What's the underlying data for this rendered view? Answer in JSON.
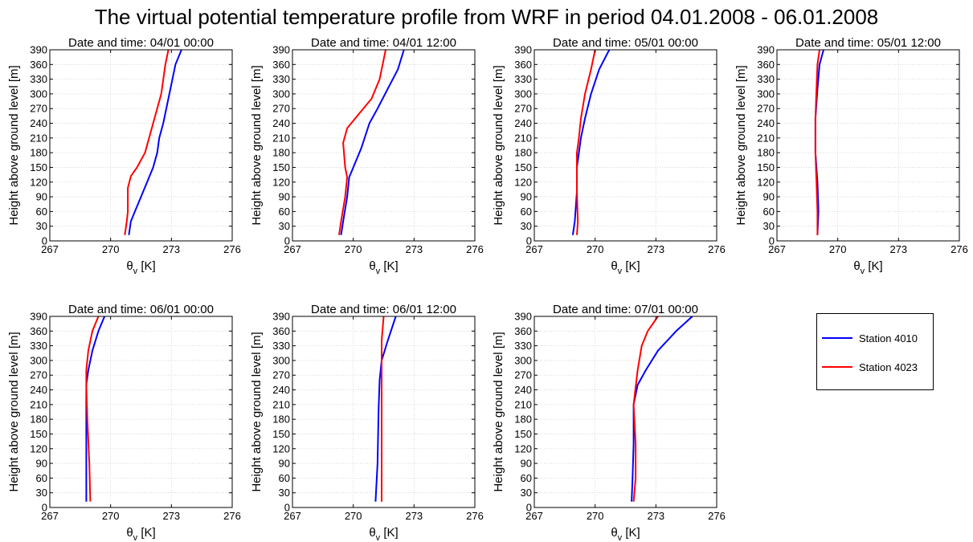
{
  "figure": {
    "title": "The virtual potential temperature profile from WRF in period 04.01.2008 - 06.01.2008"
  },
  "legend": [
    {
      "name": "Station 4010",
      "color": "#0000ff"
    },
    {
      "name": "Station 4023",
      "color": "#ff0000"
    }
  ],
  "chart_data": [
    {
      "type": "line",
      "title": "Date and time: 04/01 00:00",
      "xlabel": "θv [K]",
      "ylabel": "Height above ground level [m]",
      "xlim": [
        267,
        276
      ],
      "ylim": [
        0,
        390
      ],
      "xticks": [
        267,
        270,
        273,
        276
      ],
      "yticks": [
        0,
        30,
        60,
        90,
        120,
        150,
        180,
        210,
        240,
        270,
        300,
        330,
        360,
        390
      ],
      "grid": true,
      "series": [
        {
          "name": "Station 4010",
          "color": "#0000ff",
          "x": [
            270.9,
            271.0,
            271.2,
            271.5,
            271.8,
            272.1,
            272.3,
            272.4,
            272.6,
            272.9,
            273.2,
            273.5
          ],
          "y": [
            12,
            40,
            60,
            90,
            120,
            150,
            180,
            210,
            240,
            300,
            360,
            390
          ]
        },
        {
          "name": "Station 4023",
          "color": "#ff0000",
          "x": [
            270.7,
            270.8,
            270.85,
            270.85,
            271.0,
            271.3,
            271.7,
            272.1,
            272.5,
            272.7,
            272.85
          ],
          "y": [
            12,
            40,
            60,
            108,
            132,
            150,
            180,
            240,
            300,
            360,
            390
          ]
        }
      ]
    },
    {
      "type": "line",
      "title": "Date and time: 04/01 12:00",
      "xlabel": "θv [K]",
      "ylabel": "Height above ground level [m]",
      "xlim": [
        267,
        276
      ],
      "ylim": [
        0,
        390
      ],
      "xticks": [
        267,
        270,
        273,
        276
      ],
      "yticks": [
        0,
        30,
        60,
        90,
        120,
        150,
        180,
        210,
        240,
        270,
        300,
        330,
        360,
        390
      ],
      "grid": true,
      "series": [
        {
          "name": "Station 4010",
          "color": "#0000ff",
          "x": [
            269.4,
            269.5,
            269.7,
            269.8,
            270.0,
            270.4,
            270.8,
            271.2,
            271.7,
            272.2,
            272.5
          ],
          "y": [
            12,
            40,
            90,
            130,
            150,
            190,
            240,
            270,
            310,
            350,
            390
          ]
        },
        {
          "name": "Station 4023",
          "color": "#ff0000",
          "x": [
            269.3,
            269.4,
            269.6,
            269.7,
            269.6,
            269.5,
            269.7,
            270.3,
            270.9,
            271.3,
            271.6
          ],
          "y": [
            12,
            40,
            90,
            130,
            150,
            200,
            230,
            260,
            290,
            330,
            390
          ]
        }
      ]
    },
    {
      "type": "line",
      "title": "Date and time: 05/01 00:00",
      "xlabel": "θv [K]",
      "ylabel": "Height above ground level [m]",
      "xlim": [
        267,
        276
      ],
      "ylim": [
        0,
        390
      ],
      "xticks": [
        267,
        270,
        273,
        276
      ],
      "yticks": [
        0,
        30,
        60,
        90,
        120,
        150,
        180,
        210,
        240,
        270,
        300,
        330,
        360,
        390
      ],
      "grid": true,
      "series": [
        {
          "name": "Station 4010",
          "color": "#0000ff",
          "x": [
            268.9,
            269.0,
            269.1,
            269.1,
            269.2,
            269.3,
            269.5,
            269.8,
            270.2,
            270.7
          ],
          "y": [
            12,
            40,
            100,
            150,
            180,
            210,
            250,
            300,
            350,
            390
          ]
        },
        {
          "name": "Station 4023",
          "color": "#ff0000",
          "x": [
            269.1,
            269.15,
            269.1,
            269.1,
            269.1,
            269.2,
            269.3,
            269.5,
            269.8,
            270.0
          ],
          "y": [
            12,
            40,
            100,
            150,
            180,
            210,
            250,
            300,
            350,
            390
          ]
        }
      ]
    },
    {
      "type": "line",
      "title": "Date and time: 05/01 12:00",
      "xlabel": "θv [K]",
      "ylabel": "Height above ground level [m]",
      "xlim": [
        267,
        276
      ],
      "ylim": [
        0,
        390
      ],
      "xticks": [
        267,
        270,
        273,
        276
      ],
      "yticks": [
        0,
        30,
        60,
        90,
        120,
        150,
        180,
        210,
        240,
        270,
        300,
        330,
        360,
        390
      ],
      "grid": true,
      "series": [
        {
          "name": "Station 4010",
          "color": "#0000ff",
          "x": [
            269.0,
            269.05,
            269.0,
            268.9,
            268.9,
            269.0,
            269.1,
            269.3
          ],
          "y": [
            12,
            60,
            120,
            180,
            250,
            310,
            360,
            390
          ]
        },
        {
          "name": "Station 4023",
          "color": "#ff0000",
          "x": [
            269.0,
            269.0,
            268.95,
            268.9,
            268.9,
            268.95,
            269.0,
            269.1
          ],
          "y": [
            12,
            60,
            120,
            180,
            250,
            310,
            360,
            390
          ]
        }
      ]
    },
    {
      "type": "line",
      "title": "Date and time: 06/01 00:00",
      "xlabel": "θv [K]",
      "ylabel": "Height above ground level [m]",
      "xlim": [
        267,
        276
      ],
      "ylim": [
        0,
        390
      ],
      "xticks": [
        267,
        270,
        273,
        276
      ],
      "yticks": [
        0,
        30,
        60,
        90,
        120,
        150,
        180,
        210,
        240,
        270,
        300,
        330,
        360,
        390
      ],
      "grid": true,
      "series": [
        {
          "name": "Station 4010",
          "color": "#0000ff",
          "x": [
            268.8,
            268.8,
            268.8,
            268.8,
            268.9,
            269.1,
            269.4,
            269.7
          ],
          "y": [
            12,
            90,
            180,
            250,
            280,
            320,
            360,
            390
          ]
        },
        {
          "name": "Station 4023",
          "color": "#ff0000",
          "x": [
            269.0,
            268.95,
            268.85,
            268.8,
            268.8,
            268.9,
            269.1,
            269.4
          ],
          "y": [
            12,
            90,
            180,
            250,
            280,
            320,
            360,
            390
          ]
        }
      ]
    },
    {
      "type": "line",
      "title": "Date and time: 06/01 12:00",
      "xlabel": "θv [K]",
      "ylabel": "Height above ground level [m]",
      "xlim": [
        267,
        276
      ],
      "ylim": [
        0,
        390
      ],
      "xticks": [
        267,
        270,
        273,
        276
      ],
      "yticks": [
        0,
        30,
        60,
        90,
        120,
        150,
        180,
        210,
        240,
        270,
        300,
        330,
        360,
        390
      ],
      "grid": true,
      "series": [
        {
          "name": "Station 4010",
          "color": "#0000ff",
          "x": [
            271.1,
            271.2,
            271.25,
            271.3,
            271.4,
            271.7,
            272.1
          ],
          "y": [
            12,
            90,
            200,
            260,
            300,
            340,
            390
          ]
        },
        {
          "name": "Station 4023",
          "color": "#ff0000",
          "x": [
            271.4,
            271.4,
            271.4,
            271.4,
            271.4,
            271.4,
            271.5
          ],
          "y": [
            12,
            90,
            200,
            260,
            300,
            340,
            390
          ]
        }
      ]
    },
    {
      "type": "line",
      "title": "Date and time: 07/01 00:00",
      "xlabel": "θv [K]",
      "ylabel": "Height above ground level [m]",
      "xlim": [
        267,
        276
      ],
      "ylim": [
        0,
        390
      ],
      "xticks": [
        267,
        270,
        273,
        276
      ],
      "yticks": [
        0,
        30,
        60,
        90,
        120,
        150,
        180,
        210,
        240,
        270,
        300,
        330,
        360,
        390
      ],
      "grid": true,
      "series": [
        {
          "name": "Station 4010",
          "color": "#0000ff",
          "x": [
            271.8,
            271.85,
            271.9,
            271.9,
            272.1,
            272.5,
            273.1,
            274.0,
            274.8
          ],
          "y": [
            12,
            60,
            130,
            210,
            250,
            280,
            320,
            360,
            390
          ]
        },
        {
          "name": "Station 4023",
          "color": "#ff0000",
          "x": [
            271.9,
            272.0,
            272.0,
            271.9,
            272.1,
            272.3,
            272.6,
            273.1
          ],
          "y": [
            12,
            60,
            130,
            210,
            280,
            330,
            360,
            390
          ]
        }
      ]
    }
  ]
}
